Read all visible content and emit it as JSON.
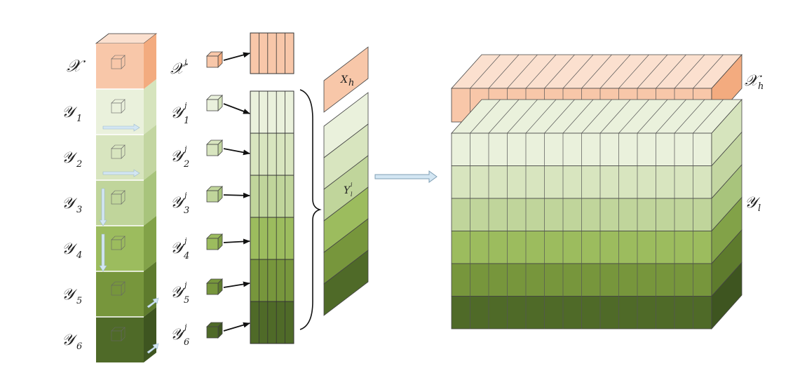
{
  "labels": {
    "x_full": "𝒳",
    "y_base": "𝒴",
    "y_subs": [
      "1",
      "2",
      "3",
      "4",
      "5",
      "6"
    ],
    "x_j_base": "𝒳",
    "j_sup": "j",
    "y_j_base": "𝒴",
    "Xh_plane_base": "X",
    "Xh_plane_sub": "h",
    "Yl_plane_base": "Y",
    "Yl_plane_sub": "l",
    "Yl_plane_sup": "i",
    "xh_big_base": "𝒳",
    "xh_big_sub": "h",
    "yl_big_base": "𝒴",
    "yl_big_sub": "l"
  },
  "colors": {
    "x_front": "#f8c7a9",
    "x_side": "#f3ab7f",
    "x_top": "#fbe0cf",
    "greens": [
      "#eaf1dc",
      "#d8e5bf",
      "#c0d59b",
      "#9cbc5e",
      "#77963c",
      "#4f6a28"
    ],
    "green_sides": [
      "#d6e4bd",
      "#c3d6a1",
      "#a8c47c",
      "#82a248",
      "#5e7b2d",
      "#3e5520"
    ],
    "arrow_light": "#d3e6f3"
  },
  "icons": [
    "right-arrow-icon"
  ]
}
